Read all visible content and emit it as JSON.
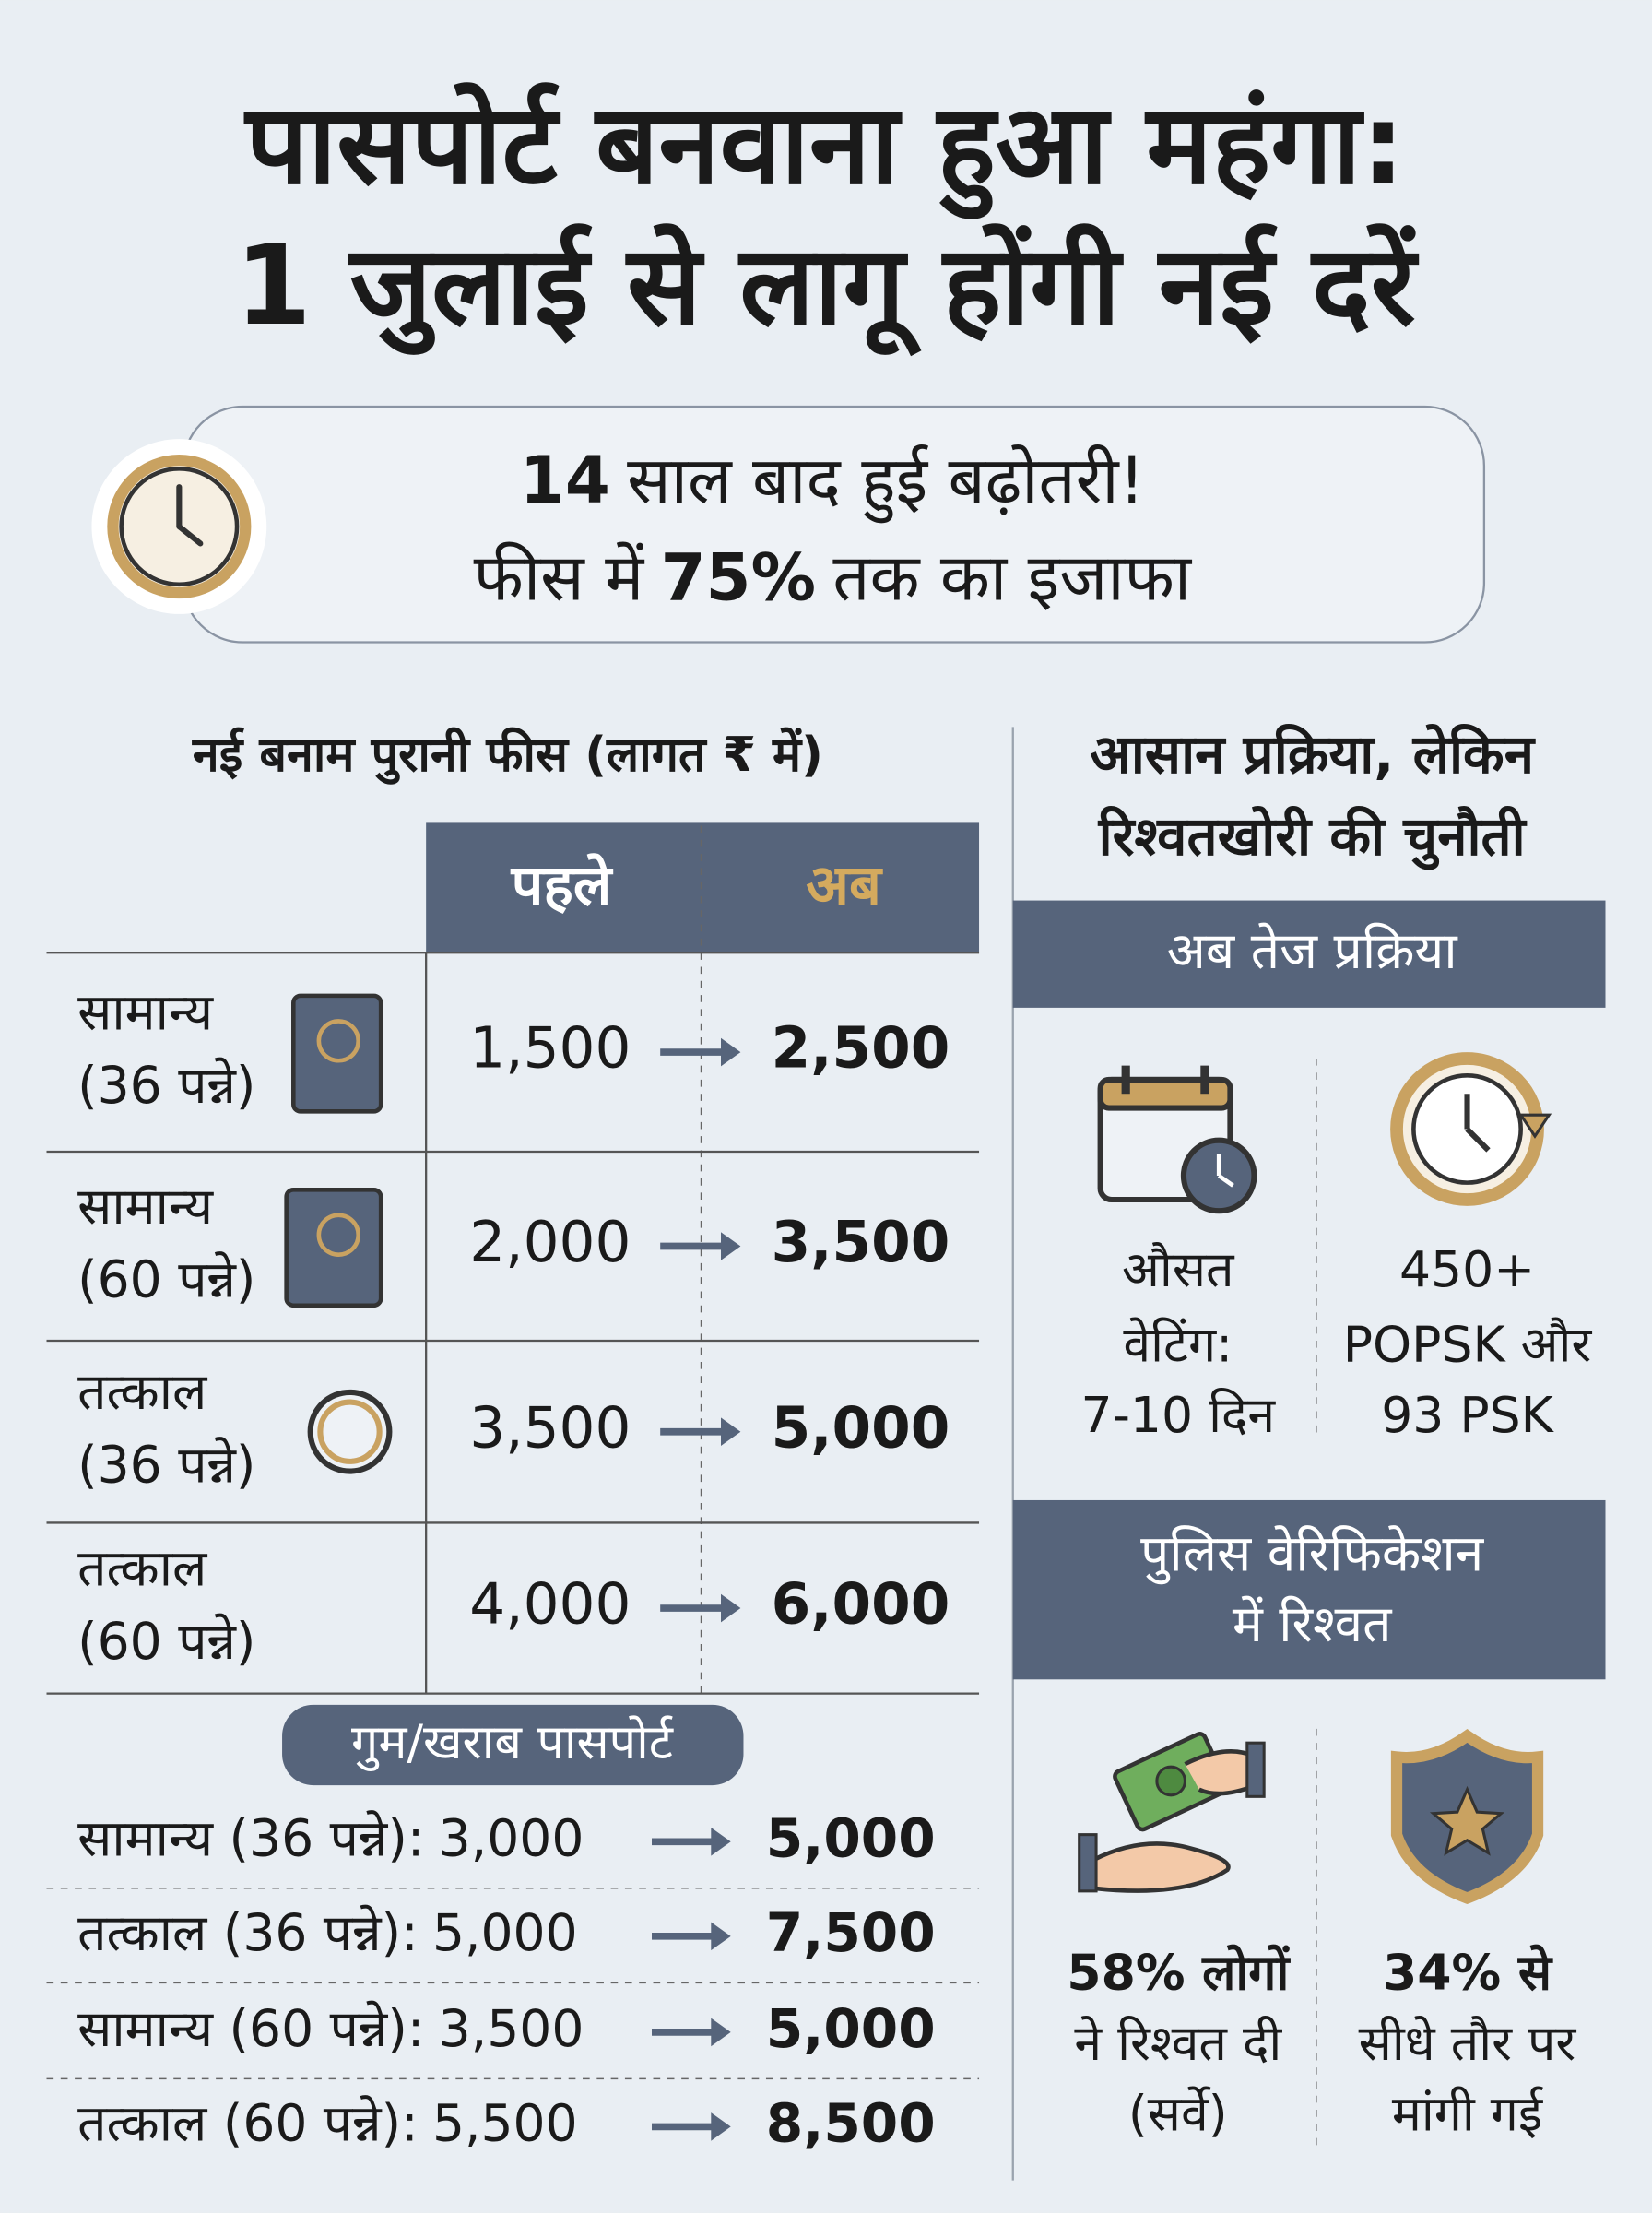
{
  "header": {
    "title_lines": [
      "पासपोर्ट बनवाना हुआ महंगा:",
      "1 जुलाई से लागू होंगी नई दरें"
    ]
  },
  "banner": {
    "line1_bold": "14",
    "line1_rest": "साल बाद हुई बढ़ोतरी!",
    "line2_start": "फीस में",
    "line2_bold": "75%",
    "line2_end": "तक का इजाफा"
  },
  "fees": {
    "title": "नई बनाम पुरानी फीस (लागत ₹ में)",
    "headers": [
      "पहले",
      "अब"
    ],
    "rows": [
      {
        "label_lines": [
          "सामान्य",
          "(36 पन्ने)"
        ],
        "old": "1,500",
        "new": "2,500"
      },
      {
        "label_lines": [
          "सामान्य",
          "(60 पन्ने)"
        ],
        "old": "2,000",
        "new": "3,500"
      },
      {
        "label_lines": [
          "तत्काल",
          "(36 पन्ने)"
        ],
        "old": "3,500",
        "new": "5,000"
      },
      {
        "label_lines": [
          "तत्काल",
          "(60 पन्ने)"
        ],
        "old": "4,000",
        "new": "6,000"
      }
    ]
  },
  "lost": {
    "title": "गुम/खराब पासपोर्ट",
    "rows": [
      {
        "label": "सामान्य (36 पन्ने):",
        "old": "3,000",
        "new": "5,000"
      },
      {
        "label": "तत्काल (36 पन्ने):",
        "old": "5,000",
        "new": "7,500"
      },
      {
        "label": "सामान्य (60 पन्ने):",
        "old": "3,500",
        "new": "5,000"
      },
      {
        "label": "तत्काल (60 पन्ने):",
        "old": "5,500",
        "new": "8,500"
      }
    ]
  },
  "right": {
    "title_lines": [
      "आसान प्रक्रिया, लेकिन",
      "रिश्वतखोरी की चुनौती"
    ],
    "process": {
      "header": "अब तेज प्रक्रिया",
      "items": [
        [
          "औसत",
          "वेटिंग:",
          "7-10 दिन"
        ],
        [
          "450+",
          "POPSK और",
          "93 PSK"
        ]
      ]
    },
    "bribe": {
      "header_lines": [
        "पुलिस वेरिफिकेशन",
        "में रिश्वत"
      ],
      "items": [
        [
          "58% लोगों",
          "ने रिश्वत दी",
          "(सर्वे)"
        ],
        [
          "34% से",
          "सीधे तौर पर",
          "मांगी गई"
        ]
      ]
    }
  }
}
